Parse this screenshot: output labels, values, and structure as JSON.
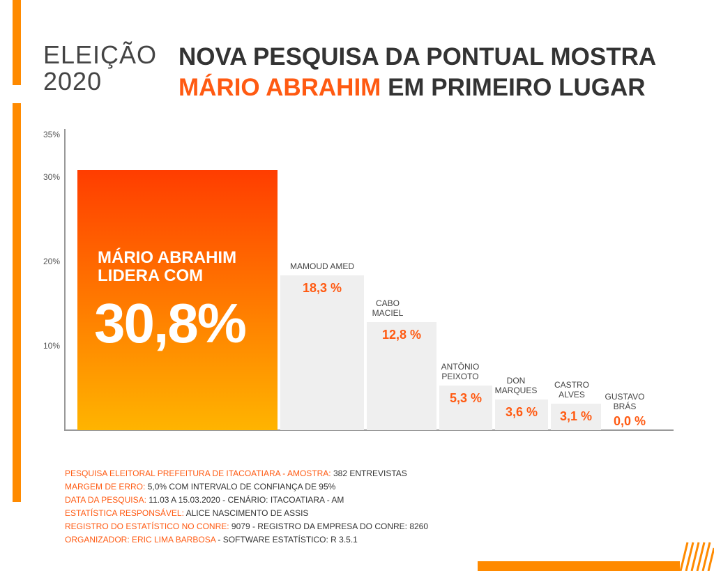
{
  "chart_data": {
    "type": "bar",
    "kicker": "ELEIÇÃO 2020",
    "title": [
      "NOVA PESQUISA DA PONTUAL MOSTRA",
      "MÁRIO ABRAHIM",
      "EM PRIMEIRO LUGAR"
    ],
    "leader_text": "LIDERA COM",
    "categories": [
      "MÁRIO ABRAHIM",
      "MAMOUD AMED",
      "CABO MACIEL",
      "ANTÔNIO PEIXOTO",
      "DON MARQUES",
      "CASTRO ALVES",
      "GUSTAVO BRÁS"
    ],
    "values": [
      30.8,
      18.3,
      12.8,
      5.3,
      3.6,
      3.1,
      0.0
    ],
    "value_labels": [
      "30,8%",
      "18,3 %",
      "12,8 %",
      "5,3 %",
      "3,6 %",
      "3,1 %",
      "0,0 %"
    ],
    "color": "#efefef",
    "highlight_colors": [
      "#ff3d00",
      "#ffb400"
    ],
    "ylim": [
      0,
      35
    ],
    "yticks": [
      {
        "value": 10,
        "label": "10%"
      },
      {
        "value": 20,
        "label": "20%"
      },
      {
        "value": 30,
        "label": "30%"
      },
      {
        "value": 35,
        "label": "35%"
      }
    ],
    "grid": false
  },
  "notes": [
    {
      "label": "PESQUISA ELEITORAL PREFEITURA DE ITACOATIARA - AMOSTRA:",
      "text": "382 ENTREVISTAS"
    },
    {
      "label": "MARGEM DE ERRO:",
      "text": "5,0% COM INTERVALO DE CONFIANÇA DE 95%"
    },
    {
      "label": "DATA DA PESQUISA:",
      "text": "11.03 A 15.03.2020 - CENÁRIO: ITACOATIARA - AM"
    },
    {
      "label": "ESTATÍSTICA RESPONSÁVEL:",
      "text": "ALICE NASCIMENTO DE ASSIS"
    },
    {
      "label": "REGISTRO DO ESTATÍSTICO NO CONRE:",
      "text": "9079 - REGISTRO DA EMPRESA DO CONRE: 8260"
    },
    {
      "label": "ORGANIZADOR: ERIC LIMA BARBOSA",
      "text": "- SOFTWARE ESTATÍSTICO: R 3.5.1"
    }
  ]
}
